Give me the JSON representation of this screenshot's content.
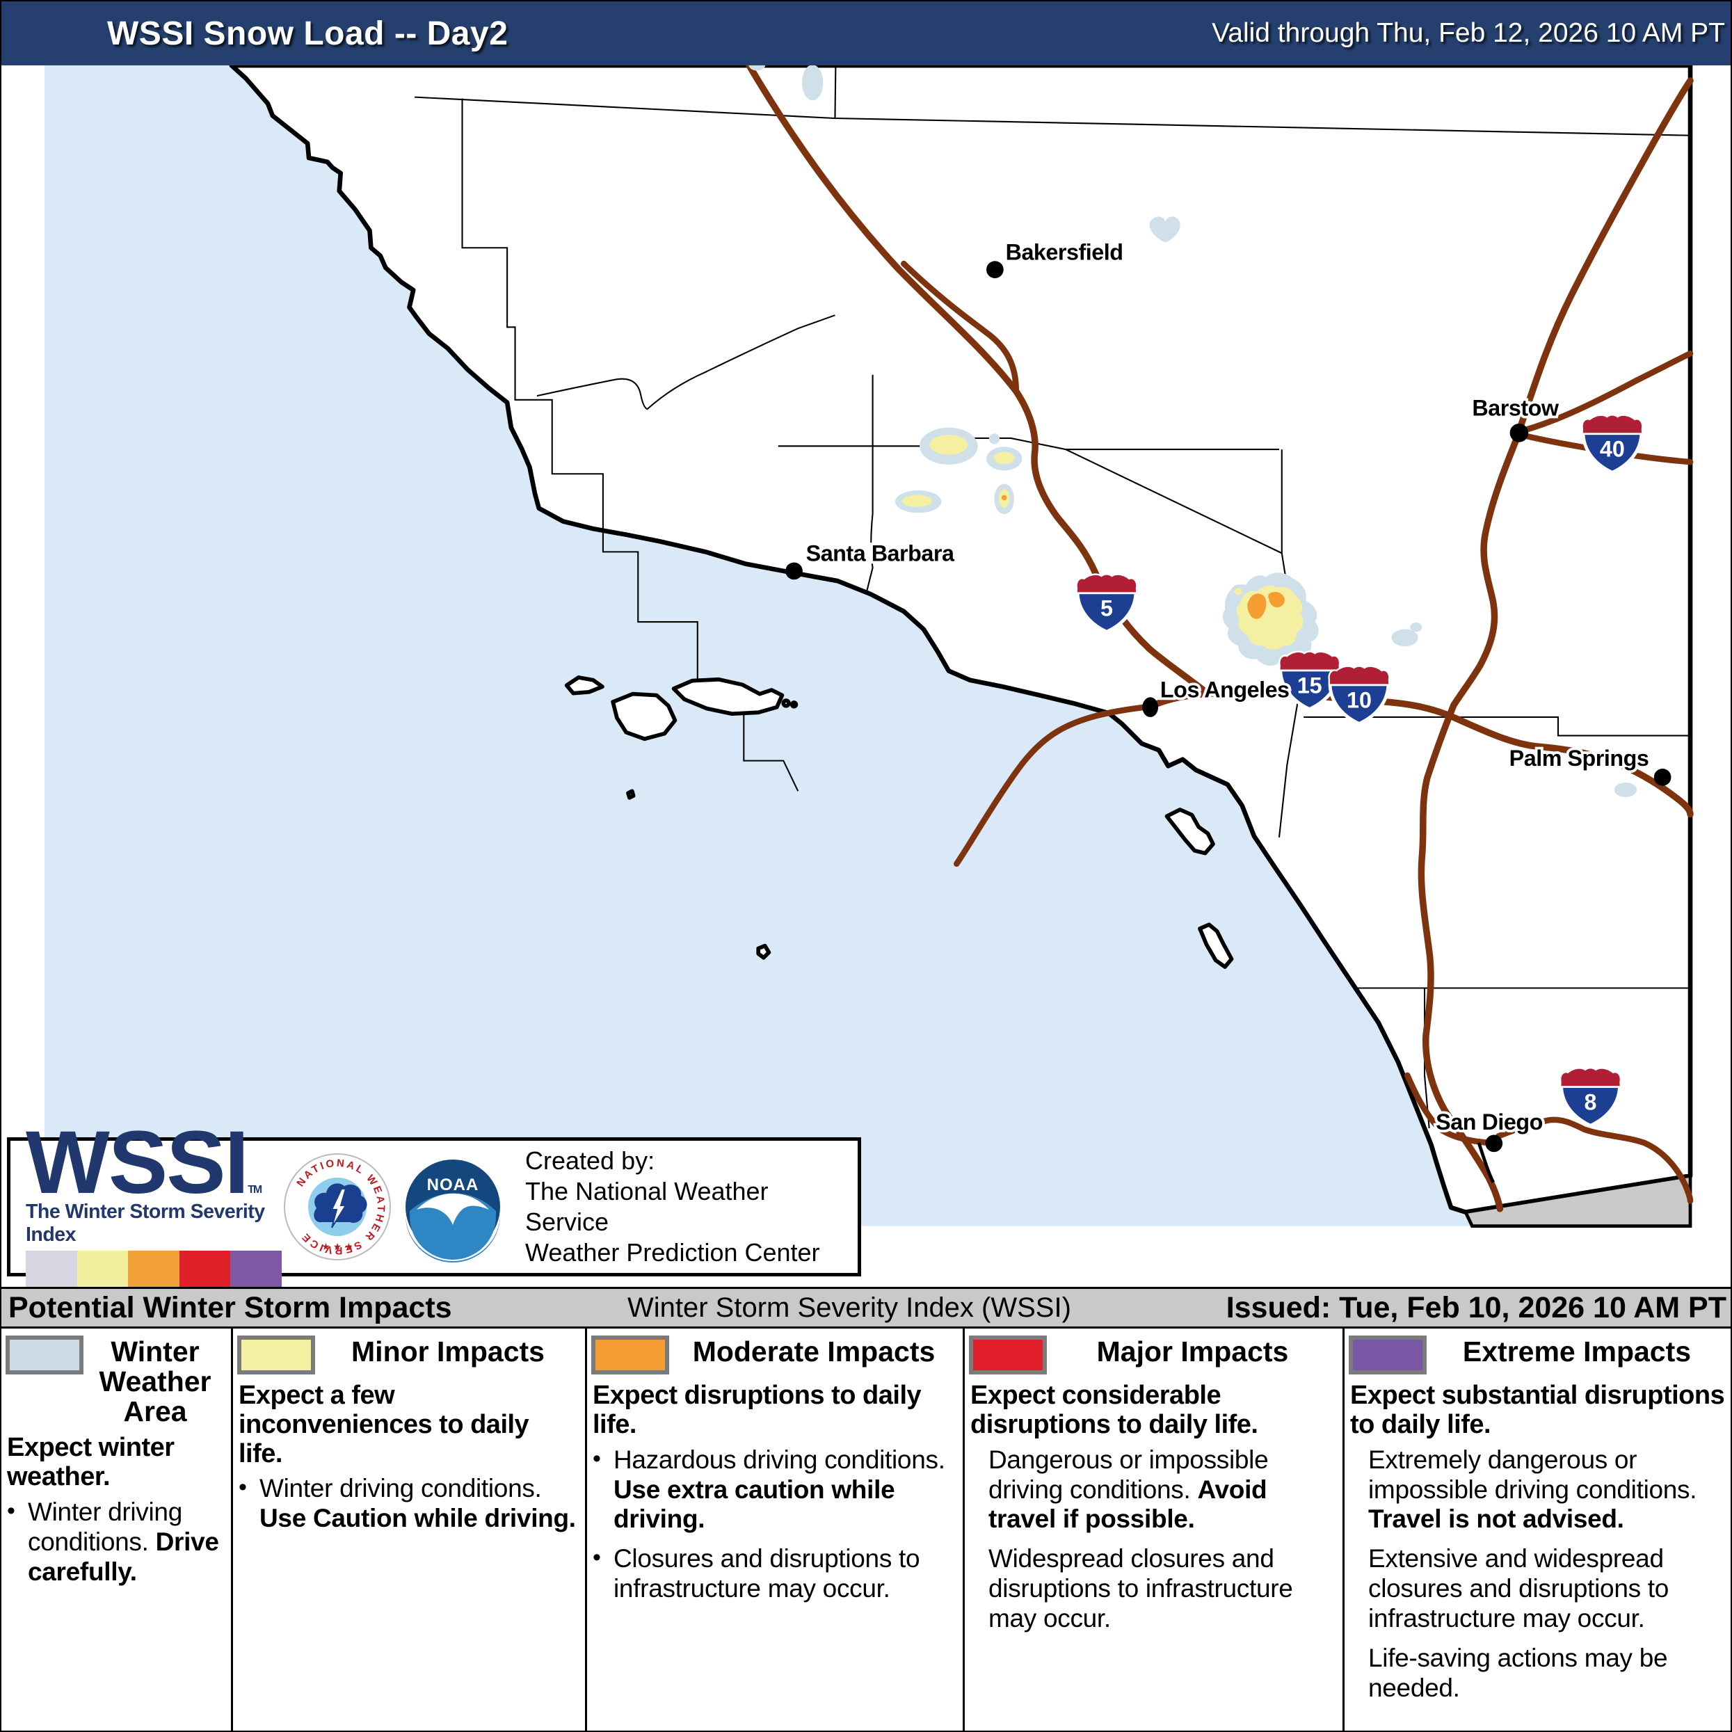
{
  "header": {
    "title": "WSSI Snow Load -- Day2",
    "valid_through": "Valid through Thu, Feb 12, 2026 10 AM PT"
  },
  "map": {
    "cities": [
      {
        "label": "Bakersfield"
      },
      {
        "label": "Santa Barbara"
      },
      {
        "label": "Los Angeles"
      },
      {
        "label": "Barstow"
      },
      {
        "label": "Palm Springs"
      },
      {
        "label": "San Diego"
      }
    ],
    "interstates": [
      {
        "number": "5"
      },
      {
        "number": "15"
      },
      {
        "number": "10"
      },
      {
        "number": "40"
      },
      {
        "number": "8"
      }
    ]
  },
  "logo_box": {
    "wssi": "WSSI",
    "tm": "TM",
    "tagline": "The Winter Storm Severity Index",
    "created_by": "Created by:",
    "org_line1": "The National Weather Service",
    "org_line2": "Weather Prediction Center",
    "nws_ring_text": "NATIONAL WEATHER SERVICE",
    "nws_stars": "★ ★ ★",
    "noaa_label": "NOAA"
  },
  "status_bar": {
    "left": "Potential Winter Storm Impacts",
    "center": "Winter Storm Severity Index (WSSI)",
    "right": "Issued: Tue, Feb 10, 2026 10 AM PT"
  },
  "legend": {
    "columns": [
      {
        "title": "Winter Weather Area",
        "color": "#ccdbe6",
        "lead": "Expect winter weather.",
        "items": [
          {
            "bullet": true,
            "runs": [
              {
                "t": "Winter driving conditions. ",
                "b": false
              },
              {
                "t": "Drive carefully.",
                "b": true
              }
            ]
          }
        ]
      },
      {
        "title": "Minor Impacts",
        "color": "#f5f0a1",
        "lead": "Expect a few inconveniences to daily life.",
        "items": [
          {
            "bullet": true,
            "runs": [
              {
                "t": "Winter driving conditions. ",
                "b": false
              },
              {
                "t": "Use Caution while driving.",
                "b": true
              }
            ]
          }
        ]
      },
      {
        "title": "Moderate Impacts",
        "color": "#f59d32",
        "lead": "Expect disruptions to daily life.",
        "items": [
          {
            "bullet": true,
            "runs": [
              {
                "t": "Hazardous driving conditions. ",
                "b": false
              },
              {
                "t": "Use extra caution while driving.",
                "b": true
              }
            ]
          },
          {
            "bullet": true,
            "runs": [
              {
                "t": "Closures and disruptions to infrastructure may occur.",
                "b": false
              }
            ]
          }
        ]
      },
      {
        "title": "Major Impacts",
        "color": "#e2202c",
        "lead": "Expect considerable disruptions to daily life.",
        "items": [
          {
            "bullet": false,
            "runs": [
              {
                "t": "Dangerous or impossible driving conditions. ",
                "b": false
              },
              {
                "t": "Avoid travel if possible.",
                "b": true
              }
            ]
          },
          {
            "bullet": false,
            "runs": [
              {
                "t": "Widespread closures and disruptions to infrastructure may occur.",
                "b": false
              }
            ]
          }
        ]
      },
      {
        "title": "Extreme Impacts",
        "color": "#7a57a5",
        "lead": "Expect substantial disruptions to daily life.",
        "items": [
          {
            "bullet": false,
            "runs": [
              {
                "t": "Extremely dangerous or impossible driving conditions. ",
                "b": false
              },
              {
                "t": "Travel is not advised.",
                "b": true
              }
            ]
          },
          {
            "bullet": false,
            "runs": [
              {
                "t": "Extensive and widespread closures and disruptions to infrastructure may occur.",
                "b": false
              }
            ]
          },
          {
            "bullet": false,
            "runs": [
              {
                "t": "Life-saving actions may be needed.",
                "b": false
              }
            ]
          }
        ]
      }
    ]
  },
  "colors": {
    "header_bg": "#25406f",
    "ocean": "#d9e9f8",
    "land": "#ffffff",
    "mexico": "#c9c9c9",
    "highway": "#7e330e",
    "winter_weather_area": "#cfe0ea",
    "minor": "#f5f0a1",
    "moderate": "#f59d32",
    "major": "#e2202c",
    "extreme": "#7a57a5",
    "status_bar_bg": "#c9c9c9",
    "wssi_navy": "#20386e",
    "shield_blue": "#1c3f94",
    "shield_red": "#b01f35"
  }
}
